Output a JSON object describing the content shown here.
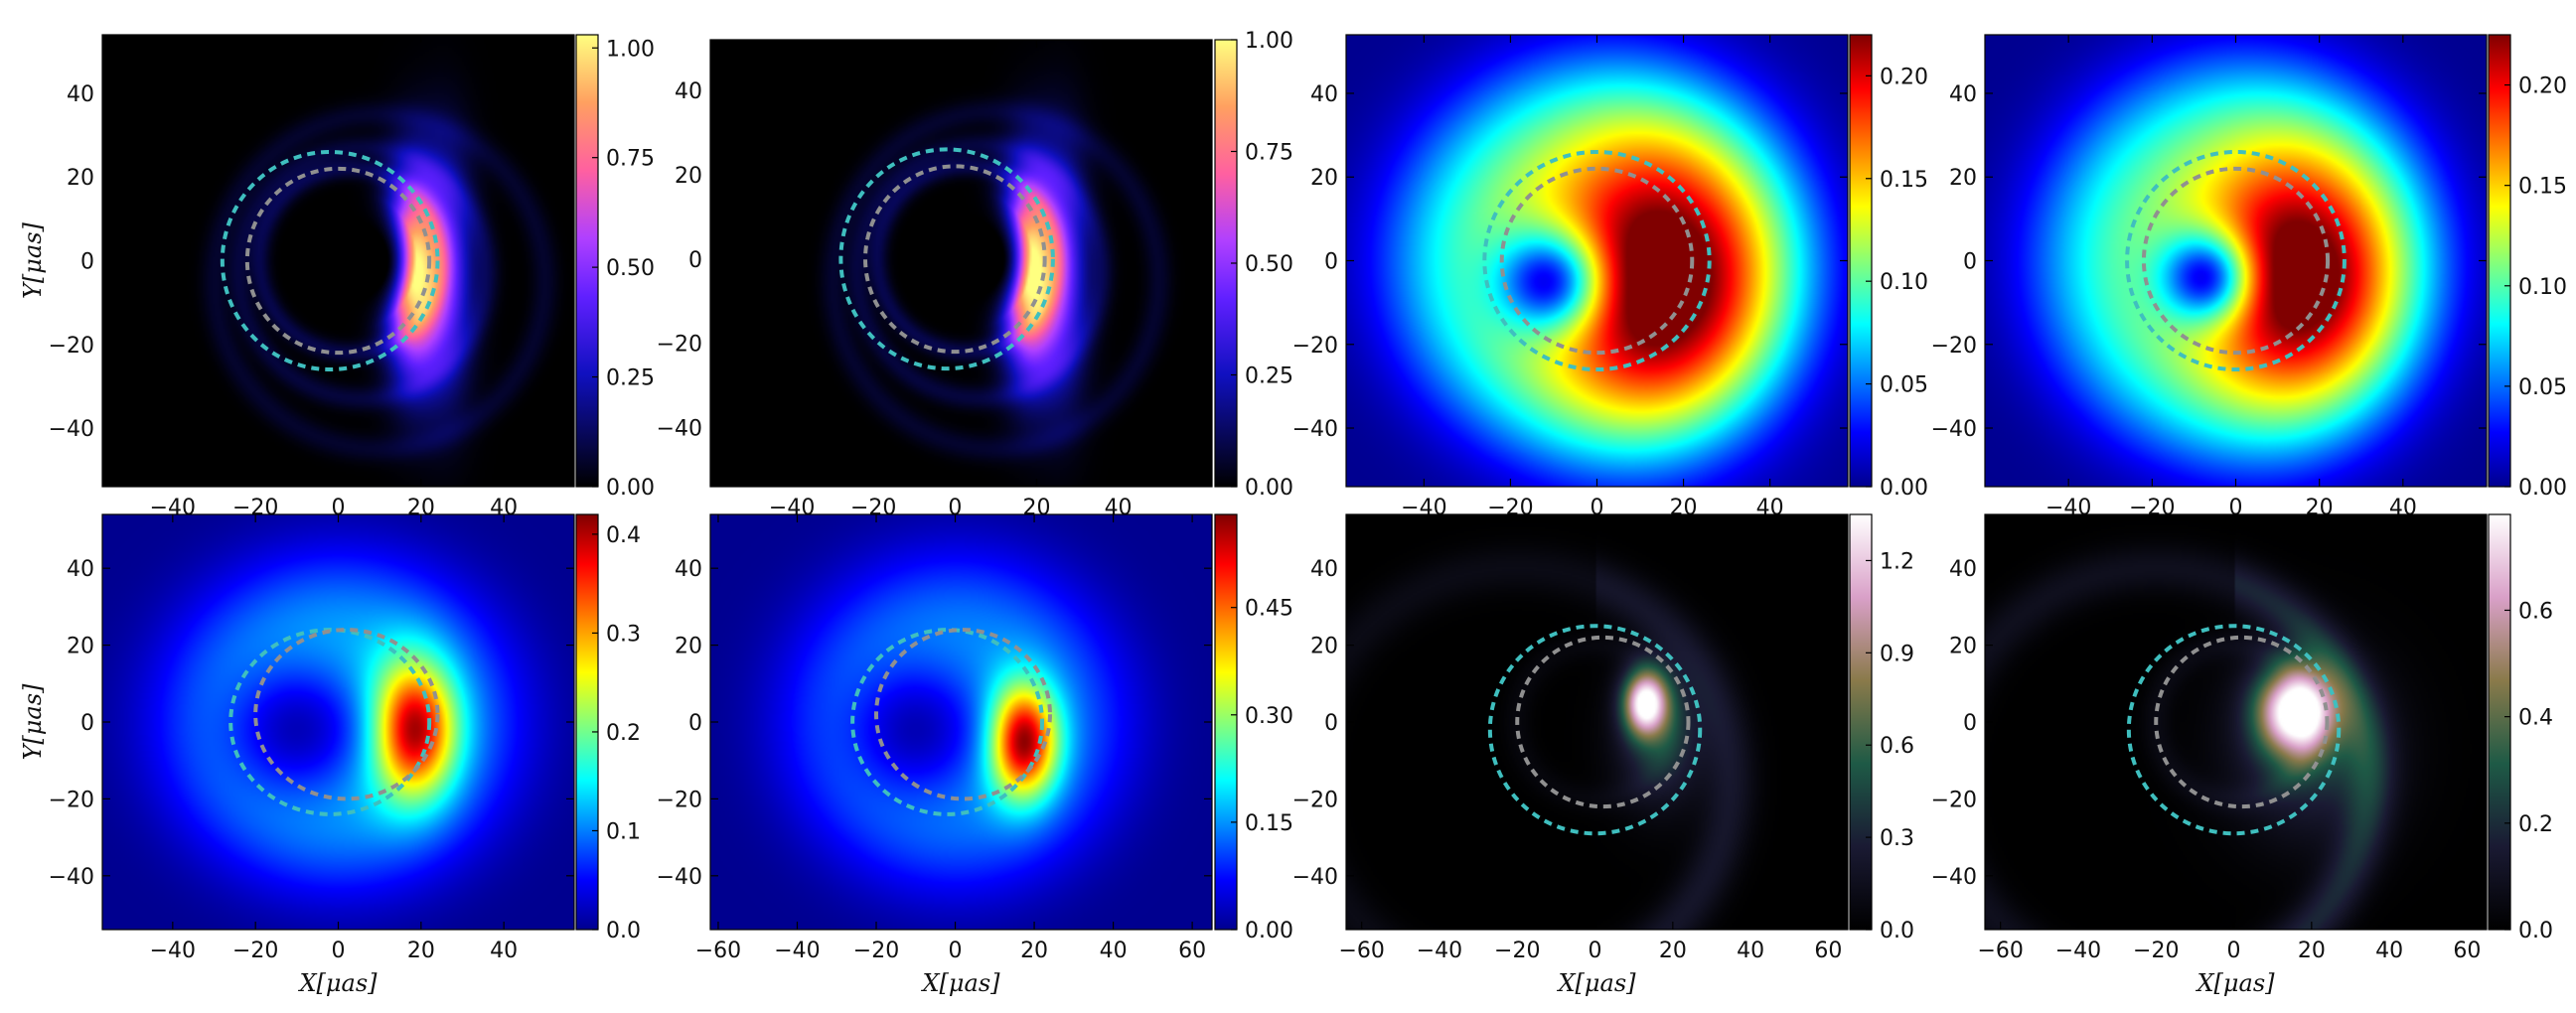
{
  "figure": {
    "x_axis_label": "X[μas]",
    "y_axis_label": "Y[μas]"
  },
  "chart_data": [
    {
      "type": "heatmap",
      "panel": "top-1",
      "colormap": "gnuplot2",
      "xlim": [
        -57,
        57
      ],
      "ylim": [
        -54,
        54
      ],
      "x_ticks": [
        "−40",
        "−20",
        "0",
        "20",
        "40"
      ],
      "y_ticks": [
        "40",
        "20",
        "0",
        "−20",
        "−40"
      ],
      "show_ylabel": true,
      "show_xlabel": false,
      "colorbar": {
        "min": 0.0,
        "max": 1.03,
        "ticks": [
          "0.00",
          "0.25",
          "0.50",
          "0.75",
          "1.00"
        ],
        "tick_values": [
          0,
          0.25,
          0.5,
          0.75,
          1.0
        ]
      },
      "image": {
        "kind": "ring",
        "cx": 18,
        "cy": -3,
        "r": 10,
        "sx": 4.5,
        "sy": 16,
        "peak": 0.95,
        "base": 0.1
      },
      "overlays": [
        {
          "style": "dashed-circle",
          "cx": -2,
          "cy": 0,
          "r": 26,
          "color": "#3fbfbf"
        },
        {
          "style": "dashed-circle",
          "cx": 0,
          "cy": 0,
          "r": 22,
          "color": "#909090"
        }
      ]
    },
    {
      "type": "heatmap",
      "panel": "top-2",
      "colormap": "gnuplot2",
      "xlim": [
        -60,
        63
      ],
      "ylim": [
        -54,
        52
      ],
      "x_ticks": [
        "−40",
        "−20",
        "0",
        "20",
        "40"
      ],
      "y_ticks": [
        "40",
        "20",
        "0",
        "−20",
        "−40"
      ],
      "show_ylabel": false,
      "show_xlabel": false,
      "colorbar": {
        "min": 0.0,
        "max": 1.0,
        "ticks": [
          "0.00",
          "0.25",
          "0.50",
          "0.75",
          "1.00"
        ],
        "tick_values": [
          0,
          0.25,
          0.5,
          0.75,
          1.0
        ]
      },
      "image": {
        "kind": "ring",
        "cx": 18,
        "cy": -3,
        "r": 10,
        "sx": 4.5,
        "sy": 16,
        "peak": 0.95,
        "base": 0.1
      },
      "overlays": [
        {
          "style": "dashed-circle",
          "cx": -2,
          "cy": 0,
          "r": 26,
          "color": "#3fbfbf"
        },
        {
          "style": "dashed-circle",
          "cx": 0,
          "cy": 0,
          "r": 22,
          "color": "#909090"
        }
      ]
    },
    {
      "type": "heatmap",
      "panel": "top-3",
      "colormap": "jet",
      "xlim": [
        -58,
        58
      ],
      "ylim": [
        -54,
        54
      ],
      "x_ticks": [
        "−40",
        "−20",
        "0",
        "20",
        "40"
      ],
      "y_ticks": [
        "40",
        "20",
        "0",
        "−20",
        "−40"
      ],
      "show_ylabel": false,
      "show_xlabel": false,
      "colorbar": {
        "min": 0.0,
        "max": 0.22,
        "ticks": [
          "0.00",
          "0.05",
          "0.10",
          "0.15",
          "0.20"
        ],
        "tick_values": [
          0,
          0.05,
          0.1,
          0.15,
          0.2
        ]
      },
      "image": {
        "kind": "blob",
        "cx": 15,
        "cy": -5,
        "sx": 19,
        "sy": 24,
        "peak": 0.21,
        "halo": 0.11,
        "halo_r": 48,
        "hole": [
          -12,
          -5,
          9
        ]
      },
      "overlays": [
        {
          "style": "dashed-circle",
          "cx": 0,
          "cy": 0,
          "r": 26,
          "color": "#3fbfbf"
        },
        {
          "style": "dashed-circle",
          "cx": 0,
          "cy": 0,
          "r": 22,
          "color": "#909090"
        }
      ]
    },
    {
      "type": "heatmap",
      "panel": "top-4",
      "colormap": "jet",
      "xlim": [
        -60,
        60
      ],
      "ylim": [
        -54,
        54
      ],
      "x_ticks": [
        "−40",
        "−20",
        "0",
        "20",
        "40"
      ],
      "y_ticks": [
        "40",
        "20",
        "0",
        "−20",
        "−40"
      ],
      "show_ylabel": false,
      "show_xlabel": false,
      "colorbar": {
        "min": 0.0,
        "max": 0.225,
        "ticks": [
          "0.00",
          "0.05",
          "0.10",
          "0.15",
          "0.20"
        ],
        "tick_values": [
          0,
          0.05,
          0.1,
          0.15,
          0.2
        ]
      },
      "image": {
        "kind": "blob",
        "cx": 15,
        "cy": -4,
        "sx": 17,
        "sy": 21,
        "peak": 0.21,
        "halo": 0.11,
        "halo_r": 48,
        "hole": [
          -8,
          -4,
          8
        ]
      },
      "overlays": [
        {
          "style": "dashed-circle",
          "cx": 0,
          "cy": 0,
          "r": 26,
          "color": "#3fbfbf"
        },
        {
          "style": "dashed-circle",
          "cx": 0,
          "cy": 0,
          "r": 22,
          "color": "#909090"
        }
      ]
    },
    {
      "type": "heatmap",
      "panel": "bottom-1",
      "colormap": "jet",
      "xlim": [
        -57,
        57
      ],
      "ylim": [
        -54,
        54
      ],
      "x_ticks": [
        "−40",
        "−20",
        "0",
        "20",
        "40"
      ],
      "y_ticks": [
        "40",
        "20",
        "0",
        "−20",
        "−40"
      ],
      "show_ylabel": true,
      "show_xlabel": true,
      "colorbar": {
        "min": 0.0,
        "max": 0.42,
        "ticks": [
          "0.0",
          "0.1",
          "0.2",
          "0.3",
          "0.4"
        ],
        "tick_values": [
          0,
          0.1,
          0.2,
          0.3,
          0.4
        ]
      },
      "image": {
        "kind": "crescent",
        "cx": 18,
        "cy": -2,
        "sx": 7,
        "sy": 12,
        "peak": 0.38,
        "halo": 0.13,
        "halo_r": 44,
        "hole": [
          -10,
          -2,
          12
        ]
      },
      "overlays": [
        {
          "style": "dashed-circle",
          "cx": -2,
          "cy": 0,
          "r": 24,
          "color": "#3fbfbf"
        },
        {
          "style": "dashed-circle",
          "cx": 2,
          "cy": 2,
          "r": 22,
          "color": "#909090"
        }
      ]
    },
    {
      "type": "heatmap",
      "panel": "bottom-2",
      "colormap": "jet",
      "xlim": [
        -62,
        65
      ],
      "ylim": [
        -54,
        54
      ],
      "x_ticks": [
        "−60",
        "−40",
        "−20",
        "0",
        "20",
        "40",
        "60"
      ],
      "y_ticks": [
        "40",
        "20",
        "0",
        "−20",
        "−40"
      ],
      "show_ylabel": false,
      "show_xlabel": true,
      "colorbar": {
        "min": 0.0,
        "max": 0.58,
        "ticks": [
          "0.00",
          "0.15",
          "0.30",
          "0.45"
        ],
        "tick_values": [
          0,
          0.15,
          0.3,
          0.45
        ]
      },
      "image": {
        "kind": "crescent",
        "cx": 17,
        "cy": -5,
        "sx": 6,
        "sy": 10,
        "peak": 0.55,
        "halo": 0.16,
        "halo_r": 44,
        "hole": [
          -10,
          -2,
          12
        ]
      },
      "overlays": [
        {
          "style": "dashed-circle",
          "cx": -2,
          "cy": 0,
          "r": 24,
          "color": "#3fbfbf"
        },
        {
          "style": "dashed-circle",
          "cx": 2,
          "cy": 2,
          "r": 22,
          "color": "#909090"
        }
      ]
    },
    {
      "type": "heatmap",
      "panel": "bottom-3",
      "colormap": "cubehelix",
      "xlim": [
        -64,
        65
      ],
      "ylim": [
        -54,
        54
      ],
      "x_ticks": [
        "−60",
        "−40",
        "−20",
        "0",
        "20",
        "40",
        "60"
      ],
      "y_ticks": [
        "40",
        "20",
        "0",
        "−20",
        "−40"
      ],
      "show_ylabel": false,
      "show_xlabel": true,
      "colorbar": {
        "min": 0.0,
        "max": 1.35,
        "ticks": [
          "0.0",
          "0.3",
          "0.6",
          "0.9",
          "1.2"
        ],
        "tick_values": [
          0,
          0.3,
          0.6,
          0.9,
          1.2
        ]
      },
      "image": {
        "kind": "spot",
        "cx": 13,
        "cy": 5,
        "sx": 4,
        "sy": 6,
        "peak": 1.3,
        "halo": 0.22,
        "halo_r": 40
      },
      "overlays": [
        {
          "style": "dashed-circle",
          "cx": 0,
          "cy": -2,
          "r": 27,
          "color": "#3fbfbf"
        },
        {
          "style": "dashed-circle",
          "cx": 2,
          "cy": 0,
          "r": 22,
          "color": "#909090"
        }
      ]
    },
    {
      "type": "heatmap",
      "panel": "bottom-4",
      "colormap": "cubehelix",
      "xlim": [
        -64,
        65
      ],
      "ylim": [
        -54,
        54
      ],
      "x_ticks": [
        "−60",
        "−40",
        "−20",
        "0",
        "20",
        "40",
        "60"
      ],
      "y_ticks": [
        "40",
        "20",
        "0",
        "−20",
        "−40"
      ],
      "show_ylabel": false,
      "show_xlabel": true,
      "colorbar": {
        "min": 0.0,
        "max": 0.78,
        "ticks": [
          "0.0",
          "0.2",
          "0.4",
          "0.6"
        ],
        "tick_values": [
          0,
          0.2,
          0.4,
          0.6
        ]
      },
      "image": {
        "kind": "spot",
        "cx": 16,
        "cy": 3,
        "sx": 7,
        "sy": 8,
        "peak": 0.76,
        "halo": 0.18,
        "halo_r": 42
      },
      "overlays": [
        {
          "style": "dashed-circle",
          "cx": 0,
          "cy": -2,
          "r": 27,
          "color": "#3fbfbf"
        },
        {
          "style": "dashed-circle",
          "cx": 2,
          "cy": 0,
          "r": 22,
          "color": "#909090"
        }
      ]
    }
  ]
}
